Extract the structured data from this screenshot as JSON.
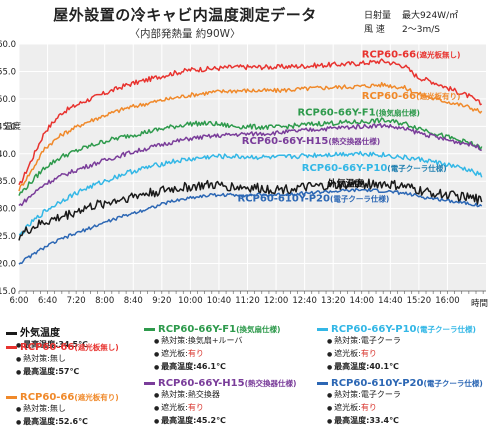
{
  "title": "屋外設置の冷キャビ内温度測定データ",
  "subtitle": "〈内部発熱量 約90W〉",
  "conditions": [
    {
      "label": "日射量",
      "value": "最大924W/㎡"
    },
    {
      "label": "風 速",
      "value": "2〜3m/S"
    }
  ],
  "colors": {
    "black": "#1a1a1a",
    "red": "#e8332f",
    "orange": "#f0892a",
    "green": "#2e9a4c",
    "purple": "#7a3d9a",
    "cyan": "#33b7e6",
    "blue": "#2c67b4",
    "plot_bg": "#eeeeee",
    "grid": "#ffffff"
  },
  "chart_data": {
    "type": "line",
    "ylabel": "温度",
    "xlabel": "時間",
    "ylim": [
      15.0,
      60.0
    ],
    "yticks": [
      "15.0",
      "20.0",
      "25.0",
      "30.0",
      "35.0",
      "40.0",
      "45.0",
      "50.0",
      "55.0",
      "60.0"
    ],
    "xticks": [
      "6:00",
      "6:40",
      "7:20",
      "8:00",
      "8:40",
      "9:20",
      "10:00",
      "10:40",
      "11:20",
      "12:00",
      "12:40",
      "13:20",
      "14:00",
      "14:40",
      "15:20",
      "16:00"
    ],
    "xlim_hours": [
      6.0,
      16.9
    ],
    "grid": true,
    "series": [
      {
        "key": "red",
        "name": "RCP60-66",
        "label_suffix": "(遮光板無し)",
        "x": [
          6.0,
          6.3,
          6.6,
          7.0,
          7.5,
          8.0,
          8.5,
          9.0,
          9.5,
          10.0,
          10.5,
          11.0,
          12.0,
          13.0,
          14.0,
          14.5,
          15.0,
          15.3,
          15.7,
          16.0,
          16.5,
          16.8
        ],
        "y": [
          34.0,
          39.0,
          44.0,
          47.5,
          49.5,
          51.0,
          52.5,
          53.5,
          54.5,
          55.3,
          55.5,
          55.8,
          55.8,
          56.1,
          56.5,
          56.9,
          56.0,
          54.0,
          53.0,
          52.0,
          50.5,
          49.0
        ]
      },
      {
        "key": "orange",
        "name": "RCP60-66",
        "label_suffix": "(遮光板有り)",
        "x": [
          6.0,
          6.3,
          6.6,
          7.0,
          7.5,
          8.0,
          8.5,
          9.0,
          9.5,
          10.0,
          10.5,
          11.0,
          12.0,
          13.0,
          14.0,
          14.5,
          15.0,
          15.3,
          15.7,
          16.0,
          16.5,
          16.8
        ],
        "y": [
          33.5,
          37.0,
          41.0,
          43.5,
          45.5,
          47.0,
          48.3,
          49.2,
          50.0,
          50.7,
          51.2,
          51.5,
          51.5,
          52.0,
          52.3,
          52.6,
          52.0,
          51.0,
          50.0,
          49.5,
          48.5,
          47.6
        ]
      },
      {
        "key": "green",
        "name": "RCP60-66Y-F1",
        "label_suffix": "(換気扇仕様)",
        "x": [
          6.0,
          6.3,
          6.6,
          7.0,
          7.5,
          8.0,
          8.5,
          9.0,
          9.5,
          10.0,
          10.5,
          11.0,
          12.0,
          13.0,
          14.0,
          14.5,
          15.0,
          15.5,
          16.0,
          16.5,
          16.8
        ],
        "y": [
          32.5,
          35.0,
          37.5,
          39.5,
          41.0,
          42.3,
          43.2,
          44.0,
          44.8,
          45.5,
          45.5,
          45.0,
          44.8,
          45.5,
          45.8,
          46.1,
          45.5,
          44.3,
          43.0,
          42.0,
          41.0
        ]
      },
      {
        "key": "purple",
        "name": "RCP60-66Y-H15",
        "label_suffix": "(熱交換器仕様)",
        "x": [
          6.0,
          6.3,
          6.6,
          7.0,
          7.5,
          8.0,
          8.5,
          9.0,
          9.5,
          10.0,
          10.5,
          11.0,
          12.0,
          13.0,
          14.0,
          14.5,
          15.0,
          15.5,
          16.0,
          16.5,
          16.8
        ],
        "y": [
          30.5,
          32.5,
          34.5,
          36.0,
          37.5,
          38.8,
          40.0,
          41.0,
          42.0,
          42.8,
          43.2,
          43.5,
          43.8,
          44.5,
          45.0,
          45.2,
          44.5,
          43.5,
          42.5,
          41.8,
          41.0
        ]
      },
      {
        "key": "cyan",
        "name": "RCP60-66Y-P10",
        "label_suffix": "(電子クーラ仕様)",
        "x": [
          6.0,
          6.3,
          6.6,
          7.0,
          7.5,
          8.0,
          8.5,
          9.0,
          9.5,
          10.0,
          10.5,
          11.0,
          12.0,
          13.0,
          14.0,
          14.5,
          15.0,
          15.5,
          16.0,
          16.5,
          16.8
        ],
        "y": [
          25.0,
          27.5,
          29.5,
          31.5,
          33.5,
          35.0,
          36.5,
          37.5,
          38.5,
          39.0,
          39.5,
          39.5,
          39.3,
          39.8,
          40.1,
          39.8,
          39.3,
          38.8,
          38.0,
          37.0,
          36.0
        ]
      },
      {
        "key": "black",
        "name": "外気温度",
        "label_suffix": "",
        "x": [
          6.0,
          6.3,
          6.6,
          7.0,
          7.5,
          8.0,
          8.5,
          9.0,
          9.5,
          10.0,
          10.5,
          11.0,
          12.0,
          13.0,
          14.0,
          14.5,
          15.0,
          15.5,
          16.0,
          16.5,
          16.8
        ],
        "y": [
          25.0,
          26.5,
          27.5,
          28.5,
          30.0,
          31.0,
          32.0,
          32.8,
          33.5,
          34.0,
          34.3,
          34.0,
          33.5,
          34.0,
          34.5,
          34.5,
          34.0,
          33.0,
          32.5,
          32.0,
          31.5
        ]
      },
      {
        "key": "blue",
        "name": "RCP60-610Y-P20",
        "label_suffix": "(電子クーラ仕様)",
        "x": [
          6.0,
          6.3,
          6.6,
          7.0,
          7.5,
          8.0,
          8.5,
          9.0,
          9.5,
          10.0,
          10.5,
          11.0,
          12.0,
          13.0,
          14.0,
          14.5,
          15.0,
          15.5,
          16.0,
          16.5,
          16.8
        ],
        "y": [
          20.0,
          21.5,
          23.0,
          24.5,
          26.0,
          27.5,
          28.8,
          30.0,
          31.2,
          32.0,
          32.5,
          32.5,
          32.5,
          33.0,
          33.4,
          33.2,
          32.8,
          32.0,
          31.5,
          31.0,
          30.5
        ]
      }
    ],
    "annotations": [
      {
        "series": "red",
        "text": "RCP60-66",
        "suffix": "(遮光板無し)",
        "x": 14.0,
        "y": 57.5
      },
      {
        "series": "orange",
        "text": "RCP60-66",
        "suffix": "(遮光板有り)",
        "x": 14.0,
        "y": 50.0
      },
      {
        "series": "green",
        "text": "RCP60-66Y-F1",
        "suffix": "(換気扇仕様)",
        "x": 12.5,
        "y": 47.0
      },
      {
        "series": "purple",
        "text": "RCP60-66Y-H15",
        "suffix": "(熱交換器仕様)",
        "x": 11.2,
        "y": 41.8
      },
      {
        "series": "cyan",
        "text": "RCP60-66Y-P10",
        "suffix": "(電子クーラ仕様)",
        "x": 12.6,
        "y": 36.9
      },
      {
        "series": "black",
        "text": "外気温度",
        "suffix": "",
        "x": 13.2,
        "y": 34.0
      },
      {
        "series": "blue",
        "text": "RCP60-610Y-P20",
        "suffix": "(電子クーラ仕様)",
        "x": 11.1,
        "y": 31.3
      }
    ]
  },
  "legend": {
    "items": [
      {
        "key": "black",
        "title": "外気温度",
        "sub": "",
        "lines": [
          {
            "prefix": "● ",
            "label": "最高温度:",
            "value": "34.5℃",
            "bold_all": true
          }
        ]
      },
      {
        "key": "red",
        "title": "RCP60-66",
        "sub": "(遮光板無し)",
        "lines": [
          {
            "prefix": "● ",
            "label": "熱対策:",
            "value": "無し"
          },
          {
            "prefix": "● ",
            "label": "最高温度:",
            "value": "57℃",
            "bold_all": true
          }
        ]
      },
      {
        "key": "orange",
        "title": "RCP60-66",
        "sub": "(遮光板有り)",
        "lines": [
          {
            "prefix": "● ",
            "label": "熱対策:",
            "value": "無し"
          },
          {
            "prefix": "● ",
            "label": "最高温度:",
            "value": "52.6℃",
            "bold_all": true
          }
        ]
      },
      {
        "key": "green",
        "title": "RCP60-66Y-F1",
        "sub": "(換気扇仕様)",
        "lines": [
          {
            "prefix": "● ",
            "label": "熱対策:",
            "value": "換気扇+ルーバ"
          },
          {
            "prefix": "● ",
            "label": "遮光板:",
            "value": "有り",
            "red": true
          },
          {
            "prefix": "● ",
            "label": "最高温度:",
            "value": "46.1℃",
            "bold_all": true
          }
        ]
      },
      {
        "key": "purple",
        "title": "RCP60-66Y-H15",
        "sub": "(熱交換器仕様)",
        "lines": [
          {
            "prefix": "● ",
            "label": "熱対策:",
            "value": "熱交換器"
          },
          {
            "prefix": "● ",
            "label": "遮光板:",
            "value": "有り",
            "red": true
          },
          {
            "prefix": "● ",
            "label": "最高温度:",
            "value": "45.2℃",
            "bold_all": true
          }
        ]
      },
      {
        "key": "cyan",
        "title": "RCP60-66Y-P10",
        "sub": "(電子クーラ仕様)",
        "lines": [
          {
            "prefix": "● ",
            "label": "熱対策:",
            "value": "電子クーラ"
          },
          {
            "prefix": "● ",
            "label": "遮光板:",
            "value": "有り",
            "red": true
          },
          {
            "prefix": "● ",
            "label": "最高温度:",
            "value": "40.1℃",
            "bold_all": true
          }
        ]
      },
      {
        "key": "blue",
        "title": "RCP60-610Y-P20",
        "sub": "(電子クーラ仕様)",
        "lines": [
          {
            "prefix": "● ",
            "label": "熱対策:",
            "value": "電子クーラ"
          },
          {
            "prefix": "● ",
            "label": "遮光板:",
            "value": "有り",
            "red": true
          },
          {
            "prefix": "● ",
            "label": "最高温度:",
            "value": "33.4℃",
            "bold_all": true
          }
        ]
      }
    ]
  }
}
